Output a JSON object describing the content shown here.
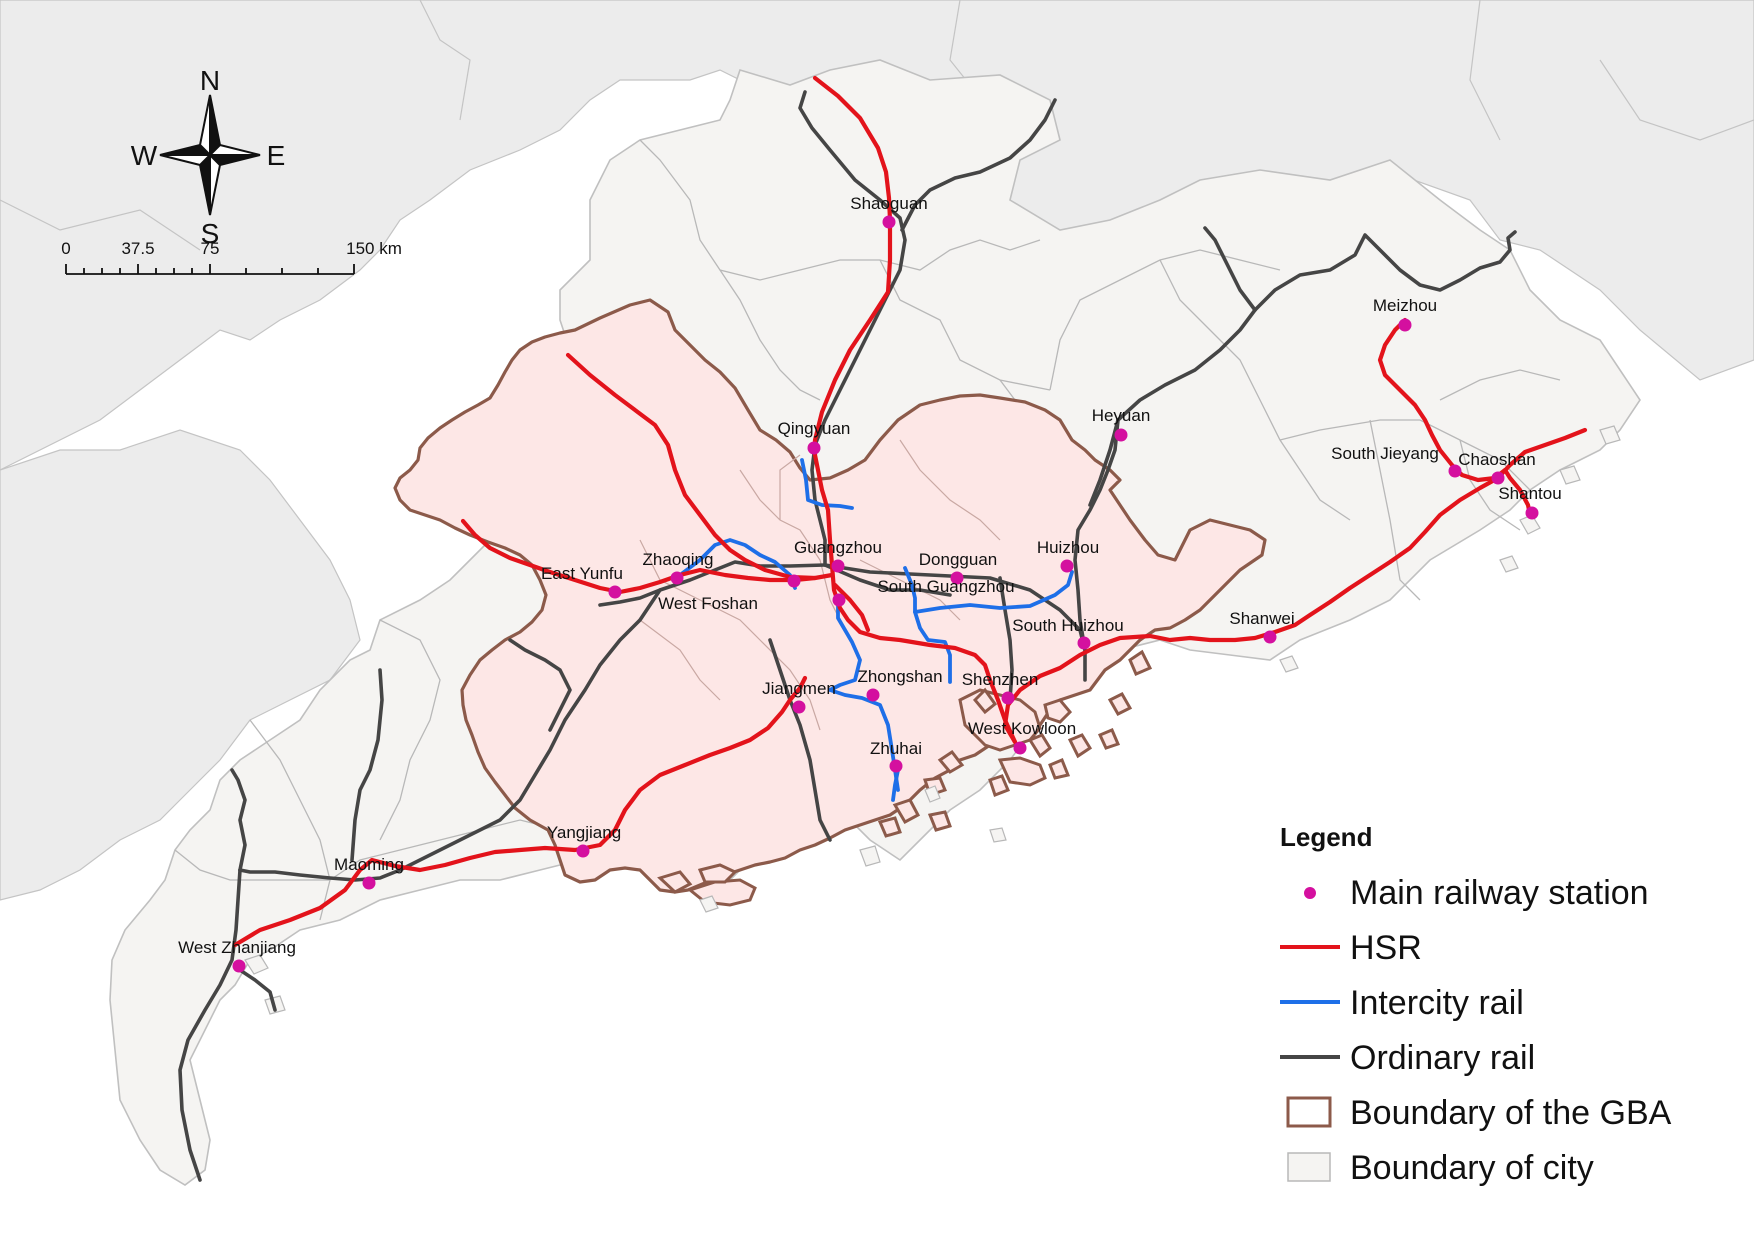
{
  "colors": {
    "hsr": "#e3131b",
    "intercity": "#1e6fe8",
    "ordinary": "#454545",
    "station": "#d4109f",
    "gba_boundary": "#8c5a4a",
    "gba_fill": "#fde7e6",
    "city_fill": "#f5f4f2",
    "city_border": "#b4b4b4",
    "outside_land": "#ececec"
  },
  "compass": {
    "n": "N",
    "s": "S",
    "e": "E",
    "w": "W"
  },
  "scale_bar": {
    "labels": [
      "0",
      "37.5",
      "75",
      "150 km"
    ]
  },
  "stations": [
    {
      "id": "shaoguan",
      "name": "Shaoguan"
    },
    {
      "id": "meizhou",
      "name": "Meizhou"
    },
    {
      "id": "qingyuan",
      "name": "Qingyuan"
    },
    {
      "id": "heyuan",
      "name": "Heyuan"
    },
    {
      "id": "south-jieyang",
      "name": "South Jieyang"
    },
    {
      "id": "chaoshan",
      "name": "Chaoshan"
    },
    {
      "id": "shantou",
      "name": "Shantou"
    },
    {
      "id": "guangzhou",
      "name": "Guangzhou"
    },
    {
      "id": "dongguan",
      "name": "Dongguan"
    },
    {
      "id": "huizhou",
      "name": "Huizhou"
    },
    {
      "id": "zhaoqing",
      "name": "Zhaoqing"
    },
    {
      "id": "east-yunfu",
      "name": "East Yunfu"
    },
    {
      "id": "west-foshan",
      "name": "West Foshan"
    },
    {
      "id": "south-guangzhou",
      "name": "South Guangzhou"
    },
    {
      "id": "south-huizhou",
      "name": "South Huizhou"
    },
    {
      "id": "shanwei",
      "name": "Shanwei"
    },
    {
      "id": "jiangmen",
      "name": "Jiangmen"
    },
    {
      "id": "zhongshan",
      "name": "Zhongshan"
    },
    {
      "id": "shenzhen",
      "name": "Shenzhen"
    },
    {
      "id": "west-kowloon",
      "name": "West Kowloon"
    },
    {
      "id": "zhuhai",
      "name": "Zhuhai"
    },
    {
      "id": "yangjiang",
      "name": "Yangjiang"
    },
    {
      "id": "maoming",
      "name": "Maoming"
    },
    {
      "id": "west-zhanjiang",
      "name": "West Zhanjiang"
    }
  ],
  "legend": {
    "title": "Legend",
    "items": [
      {
        "id": "station",
        "label": "Main railway station"
      },
      {
        "id": "hsr",
        "label": "HSR"
      },
      {
        "id": "intercity",
        "label": "Intercity rail"
      },
      {
        "id": "ordinary",
        "label": "Ordinary rail"
      },
      {
        "id": "gba",
        "label": "Boundary of the GBA"
      },
      {
        "id": "city",
        "label": "Boundary of city"
      }
    ]
  }
}
